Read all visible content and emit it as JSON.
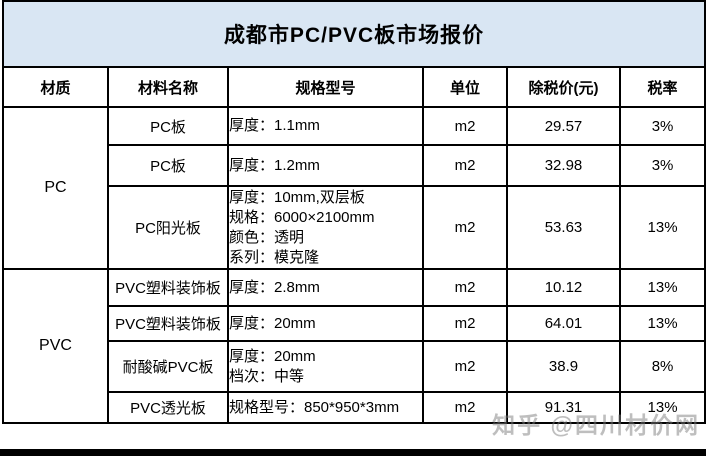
{
  "title": "成都市PC/PVC板市场报价",
  "watermark": "知乎 @四川材价网",
  "colors": {
    "title_bg": "#d9e6f3",
    "border": "#000000",
    "watermark_gray": "#7d7d7d"
  },
  "table": {
    "headers": [
      "材质",
      "材料名称",
      "规格型号",
      "单位",
      "除税价(元)",
      "税率"
    ],
    "groups": [
      {
        "material": "PC",
        "rows": [
          {
            "name": "PC板",
            "spec": [
              "厚度：1.1mm"
            ],
            "unit": "m2",
            "price": "29.57",
            "tax": "3%"
          },
          {
            "name": "PC板",
            "spec": [
              "厚度：1.2mm"
            ],
            "unit": "m2",
            "price": "32.98",
            "tax": "3%"
          },
          {
            "name": "PC阳光板",
            "spec": [
              "厚度：10mm,双层板",
              "规格：6000×2100mm",
              "颜色：透明",
              "系列：模克隆"
            ],
            "unit": "m2",
            "price": "53.63",
            "tax": "13%"
          }
        ]
      },
      {
        "material": "PVC",
        "rows": [
          {
            "name": "PVC塑料装饰板",
            "spec": [
              "厚度：2.8mm"
            ],
            "unit": "m2",
            "price": "10.12",
            "tax": "13%"
          },
          {
            "name": "PVC塑料装饰板",
            "spec": [
              "厚度：20mm"
            ],
            "unit": "m2",
            "price": "64.01",
            "tax": "13%"
          },
          {
            "name": "耐酸碱PVC板",
            "spec": [
              "厚度：20mm",
              "档次：中等"
            ],
            "unit": "m2",
            "price": "38.9",
            "tax": "8%"
          },
          {
            "name": "PVC透光板",
            "spec": [
              "规格型号：850*950*3mm"
            ],
            "unit": "m2",
            "price": "91.31",
            "tax": "13%"
          }
        ]
      }
    ]
  }
}
